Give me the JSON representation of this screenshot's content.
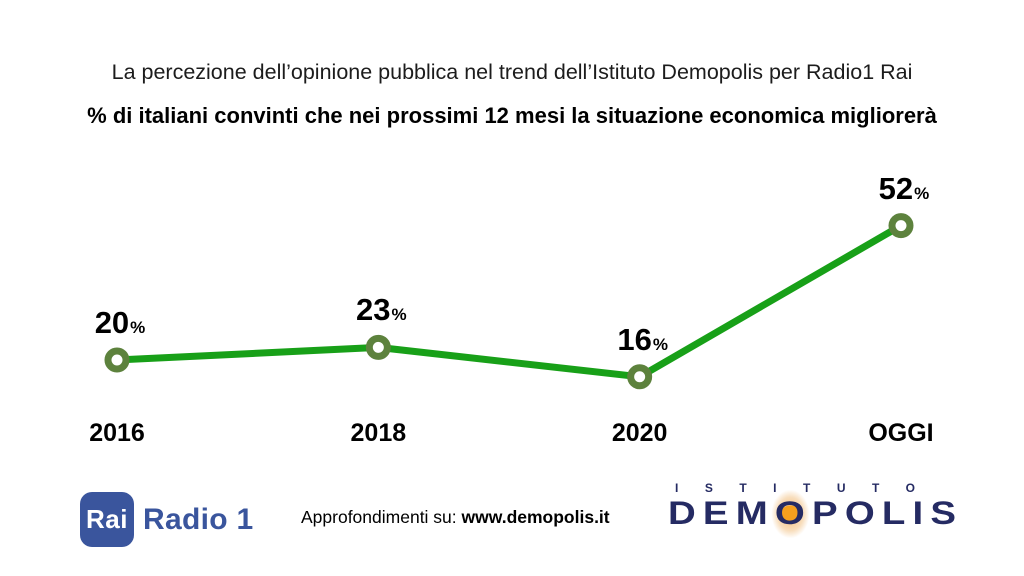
{
  "slide": {
    "kicker": "La percezione dell’opinione pubblica nel trend dell’Istituto Demopolis per Radio1 Rai"
  },
  "chart_data": {
    "type": "line",
    "title": "% di italiani convinti che nei prossimi 12 mesi la situazione economica migliorerà",
    "categories": [
      "2016",
      "2018",
      "2020",
      "OGGI"
    ],
    "values": [
      20,
      23,
      16,
      52
    ],
    "unit": "%",
    "xlabel": "",
    "ylabel": "",
    "ylim": [
      0,
      60
    ],
    "grid": false,
    "legend": "none",
    "data_labels": true,
    "line_color": "#18a018",
    "marker_color": "#5d823d",
    "marker_fill": "#ffffff",
    "label_color": "#000000"
  },
  "footer": {
    "rai": {
      "box_label": "Rai",
      "station_label": "Radio 1",
      "brand_color": "#3a559d"
    },
    "note": {
      "prefix": "Approfondimenti su: ",
      "url": "www.demopolis.it"
    },
    "demopolis": {
      "top_word": "ISTITUTO",
      "word_start": "DEM",
      "word_o": "O",
      "word_end": "POLIS",
      "navy": "#252b63",
      "orange": "#f5a01e"
    }
  }
}
